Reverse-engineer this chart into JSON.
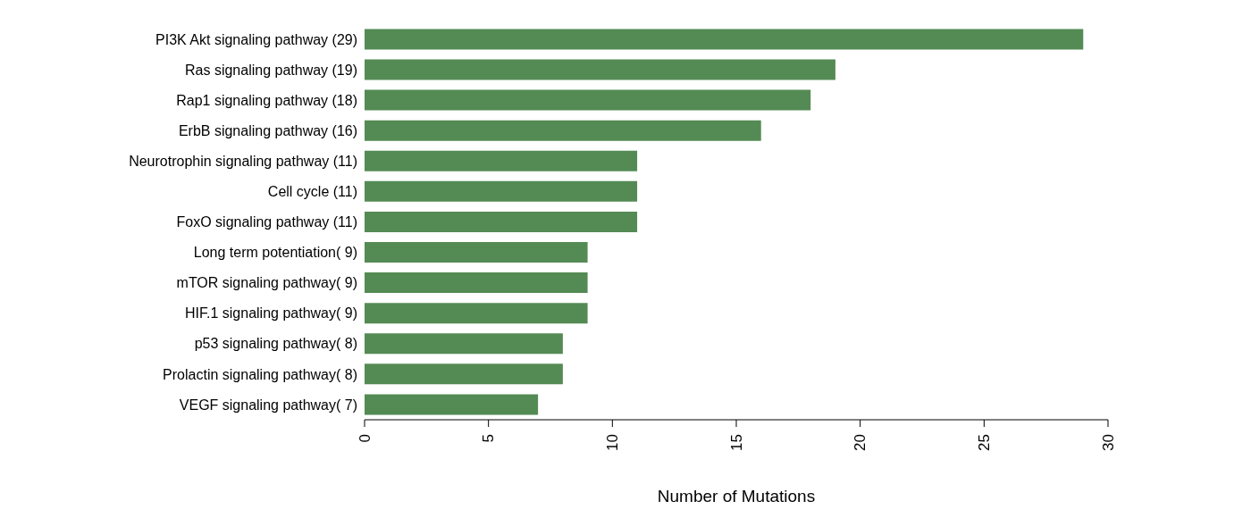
{
  "chart_data": {
    "type": "bar",
    "orientation": "horizontal",
    "xlabel": "Number of Mutations",
    "categories": [
      "PI3K Akt signaling pathway (29)",
      "Ras signaling pathway (19)",
      "Rap1 signaling pathway (18)",
      "ErbB signaling pathway (16)",
      "Neurotrophin signaling pathway (11)",
      "Cell cycle (11)",
      "FoxO signaling pathway (11)",
      "Long term potentiation( 9)",
      "mTOR signaling pathway( 9)",
      "HIF.1 signaling pathway( 9)",
      "p53 signaling pathway( 8)",
      "Prolactin signaling pathway( 8)",
      "VEGF signaling pathway( 7)"
    ],
    "values": [
      29,
      19,
      18,
      16,
      11,
      11,
      11,
      9,
      9,
      9,
      8,
      8,
      7
    ],
    "color": "#548b54",
    "xlim": [
      0,
      30
    ],
    "xticks": [
      0,
      5,
      10,
      15,
      20,
      25,
      30
    ],
    "grid": false,
    "legend": false
  }
}
